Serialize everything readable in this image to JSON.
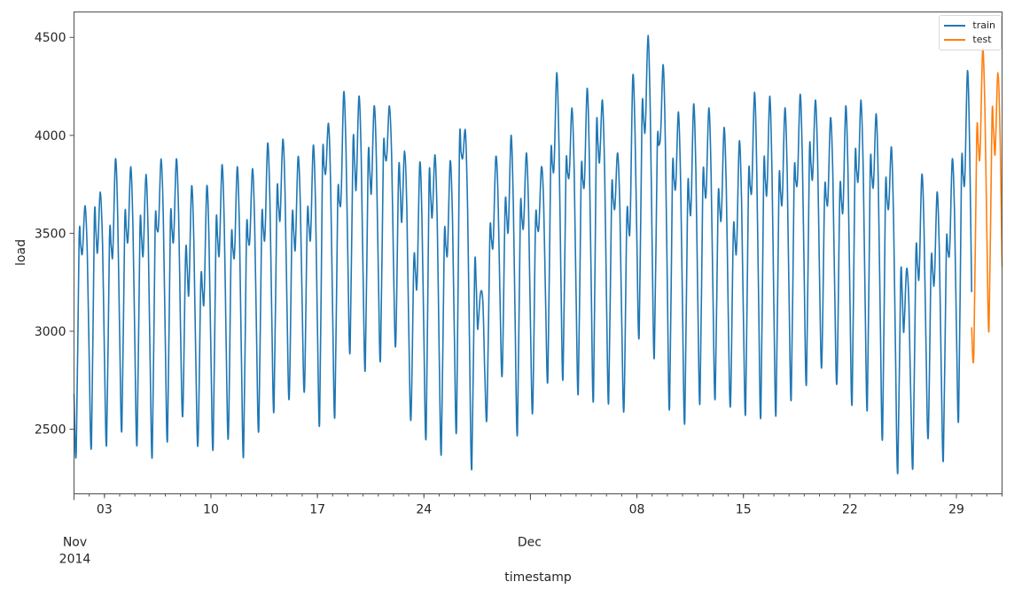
{
  "figure": {
    "xlabel": "timestamp",
    "ylabel": "load",
    "colors": {
      "train": "#1f77b4",
      "test": "#ff7f0e",
      "axes": "#4d4d4d"
    }
  },
  "legend": {
    "items": [
      {
        "label": "train",
        "color": "#1f77b4"
      },
      {
        "label": "test",
        "color": "#ff7f0e"
      }
    ]
  },
  "axes": {
    "yticks": [
      {
        "value": 2500,
        "label": "2500"
      },
      {
        "value": 3000,
        "label": "3000"
      },
      {
        "value": 3500,
        "label": "3500"
      },
      {
        "value": 4000,
        "label": "4000"
      },
      {
        "value": 4500,
        "label": "4500"
      }
    ],
    "xticks_major": [
      {
        "day": 2,
        "label": "03"
      },
      {
        "day": 9,
        "label": "10"
      },
      {
        "day": 16,
        "label": "17"
      },
      {
        "day": 23,
        "label": "24"
      },
      {
        "day": 37,
        "label": "08"
      },
      {
        "day": 44,
        "label": "15"
      },
      {
        "day": 51,
        "label": "22"
      },
      {
        "day": 58,
        "label": "29"
      }
    ],
    "month_labels": [
      {
        "day": 0,
        "month": "Nov",
        "year": "2014"
      },
      {
        "day": 30,
        "month": "Dec",
        "year": ""
      }
    ]
  },
  "chart_data": {
    "type": "line",
    "title": "",
    "xlabel": "timestamp",
    "ylabel": "load",
    "xrange": [
      "2014-11-01 00:00",
      "2014-12-31 23:00"
    ],
    "ylim": [
      2170,
      4630
    ],
    "grid": false,
    "legend_position": "upper right",
    "frequency": "hourly (daily cycle summarized: trough, morning shoulder, midday dip, evening peak)",
    "series": [
      {
        "name": "train",
        "color": "#1f77b4",
        "start": "2014-11-01",
        "end": "2014-12-30 00:00",
        "daily": [
          {
            "date": "11-01",
            "trough": 2380,
            "shoulder": 3460,
            "dip": 3390,
            "peak": 3640
          },
          {
            "date": "11-02",
            "trough": 2420,
            "shoulder": 3560,
            "dip": 3400,
            "peak": 3710
          },
          {
            "date": "11-03",
            "trough": 2430,
            "shoulder": 3470,
            "dip": 3370,
            "peak": 3880
          },
          {
            "date": "11-04",
            "trough": 2500,
            "shoulder": 3550,
            "dip": 3450,
            "peak": 3840
          },
          {
            "date": "11-05",
            "trough": 2430,
            "shoulder": 3520,
            "dip": 3380,
            "peak": 3800
          },
          {
            "date": "11-06",
            "trough": 2370,
            "shoulder": 3530,
            "dip": 3510,
            "peak": 3880
          },
          {
            "date": "11-07",
            "trough": 2450,
            "shoulder": 3550,
            "dip": 3450,
            "peak": 3880
          },
          {
            "date": "11-08",
            "trough": 2570,
            "shoulder": 3390,
            "dip": 3180,
            "peak": 3740
          },
          {
            "date": "11-09",
            "trough": 2420,
            "shoulder": 3250,
            "dip": 3130,
            "peak": 3740
          },
          {
            "date": "11-10",
            "trough": 2410,
            "shoulder": 3520,
            "dip": 3380,
            "peak": 3850
          },
          {
            "date": "11-11",
            "trough": 2460,
            "shoulder": 3450,
            "dip": 3370,
            "peak": 3840
          },
          {
            "date": "11-12",
            "trough": 2370,
            "shoulder": 3490,
            "dip": 3440,
            "peak": 3830
          },
          {
            "date": "11-13",
            "trough": 2500,
            "shoulder": 3550,
            "dip": 3460,
            "peak": 3960
          },
          {
            "date": "11-14",
            "trough": 2600,
            "shoulder": 3680,
            "dip": 3560,
            "peak": 3980
          },
          {
            "date": "11-15",
            "trough": 2660,
            "shoulder": 3560,
            "dip": 3410,
            "peak": 3890
          },
          {
            "date": "11-16",
            "trough": 2700,
            "shoulder": 3580,
            "dip": 3460,
            "peak": 3950
          },
          {
            "date": "11-17",
            "trough": 2540,
            "shoulder": 3860,
            "dip": 3800,
            "peak": 4060
          },
          {
            "date": "11-18",
            "trough": 2570,
            "shoulder": 3670,
            "dip": 3640,
            "peak": 4220
          },
          {
            "date": "11-19",
            "trough": 2900,
            "shoulder": 3940,
            "dip": 3720,
            "peak": 4200
          },
          {
            "date": "11-20",
            "trough": 2810,
            "shoulder": 3870,
            "dip": 3700,
            "peak": 4150
          },
          {
            "date": "11-21",
            "trough": 2860,
            "shoulder": 3910,
            "dip": 3870,
            "peak": 4150
          },
          {
            "date": "11-22",
            "trough": 2930,
            "shoulder": 3810,
            "dip": 3560,
            "peak": 3920
          },
          {
            "date": "11-23",
            "trough": 2550,
            "shoulder": 3350,
            "dip": 3210,
            "peak": 3860
          },
          {
            "date": "11-24",
            "trough": 2470,
            "shoulder": 3750,
            "dip": 3580,
            "peak": 3900
          },
          {
            "date": "11-25",
            "trough": 2380,
            "shoulder": 3460,
            "dip": 3380,
            "peak": 3870
          },
          {
            "date": "11-26",
            "trough": 2510,
            "shoulder": 3930,
            "dip": 3880,
            "peak": 4020
          },
          {
            "date": "11-27",
            "trough": 2300,
            "shoulder": 3320,
            "dip": 3020,
            "peak": 3200
          },
          {
            "date": "11-28",
            "trough": 2570,
            "shoulder": 3490,
            "dip": 3420,
            "peak": 3890
          },
          {
            "date": "11-29",
            "trough": 2780,
            "shoulder": 3630,
            "dip": 3500,
            "peak": 4000
          },
          {
            "date": "11-30",
            "trough": 2480,
            "shoulder": 3600,
            "dip": 3520,
            "peak": 3910
          },
          {
            "date": "12-01",
            "trough": 2590,
            "shoulder": 3550,
            "dip": 3510,
            "peak": 3840
          },
          {
            "date": "12-02",
            "trough": 2760,
            "shoulder": 3870,
            "dip": 3810,
            "peak": 4320
          },
          {
            "date": "12-03",
            "trough": 2760,
            "shoulder": 3820,
            "dip": 3780,
            "peak": 4140
          },
          {
            "date": "12-04",
            "trough": 2690,
            "shoulder": 3790,
            "dip": 3730,
            "peak": 4240
          },
          {
            "date": "12-05",
            "trough": 2660,
            "shoulder": 4000,
            "dip": 3860,
            "peak": 4180
          },
          {
            "date": "12-06",
            "trough": 2640,
            "shoulder": 3700,
            "dip": 3620,
            "peak": 3910
          },
          {
            "date": "12-07",
            "trough": 2600,
            "shoulder": 3570,
            "dip": 3490,
            "peak": 4300
          },
          {
            "date": "12-08",
            "trough": 2980,
            "shoulder": 4110,
            "dip": 4010,
            "peak": 4510
          },
          {
            "date": "12-09",
            "trough": 2870,
            "shoulder": 3940,
            "dip": 3970,
            "peak": 4360
          },
          {
            "date": "12-10",
            "trough": 2610,
            "shoulder": 3800,
            "dip": 3720,
            "peak": 4120
          },
          {
            "date": "12-11",
            "trough": 2540,
            "shoulder": 3700,
            "dip": 3590,
            "peak": 4160
          },
          {
            "date": "12-12",
            "trough": 2640,
            "shoulder": 3760,
            "dip": 3680,
            "peak": 4140
          },
          {
            "date": "12-13",
            "trough": 2660,
            "shoulder": 3660,
            "dip": 3560,
            "peak": 4040
          },
          {
            "date": "12-14",
            "trough": 2620,
            "shoulder": 3500,
            "dip": 3390,
            "peak": 3970
          },
          {
            "date": "12-15",
            "trough": 2590,
            "shoulder": 3760,
            "dip": 3700,
            "peak": 4220
          },
          {
            "date": "12-16",
            "trough": 2570,
            "shoulder": 3810,
            "dip": 3690,
            "peak": 4200
          },
          {
            "date": "12-17",
            "trough": 2580,
            "shoulder": 3740,
            "dip": 3640,
            "peak": 4140
          },
          {
            "date": "12-18",
            "trough": 2660,
            "shoulder": 3780,
            "dip": 3740,
            "peak": 4210
          },
          {
            "date": "12-19",
            "trough": 2740,
            "shoulder": 3890,
            "dip": 3770,
            "peak": 4180
          },
          {
            "date": "12-20",
            "trough": 2820,
            "shoulder": 3700,
            "dip": 3640,
            "peak": 4090
          },
          {
            "date": "12-21",
            "trough": 2740,
            "shoulder": 3700,
            "dip": 3600,
            "peak": 4150
          },
          {
            "date": "12-22",
            "trough": 2640,
            "shoulder": 3850,
            "dip": 3760,
            "peak": 4180
          },
          {
            "date": "12-23",
            "trough": 2610,
            "shoulder": 3820,
            "dip": 3730,
            "peak": 4110
          },
          {
            "date": "12-24",
            "trough": 2460,
            "shoulder": 3700,
            "dip": 3620,
            "peak": 3940
          },
          {
            "date": "12-25",
            "trough": 2280,
            "shoulder": 3270,
            "dip": 3000,
            "peak": 3320
          },
          {
            "date": "12-26",
            "trough": 2320,
            "shoulder": 3380,
            "dip": 3260,
            "peak": 3800
          },
          {
            "date": "12-27",
            "trough": 2460,
            "shoulder": 3340,
            "dip": 3230,
            "peak": 3710
          },
          {
            "date": "12-28",
            "trough": 2350,
            "shoulder": 3420,
            "dip": 3380,
            "peak": 3880
          },
          {
            "date": "12-29",
            "trough": 2560,
            "shoulder": 3820,
            "dip": 3740,
            "peak": 4330
          }
        ],
        "end_value": 3200
      },
      {
        "name": "test",
        "color": "#ff7f0e",
        "start": "2014-12-30 00:00",
        "end": "2014-12-31 23:00",
        "daily": [
          {
            "date": "12-30",
            "trough": 2890,
            "shoulder": 3990,
            "dip": 3870,
            "peak": 4440
          },
          {
            "date": "12-31",
            "trough": 3010,
            "shoulder": 4080,
            "dip": 3900,
            "peak": 4320
          }
        ],
        "start_value": 3020,
        "end_value": 3330
      }
    ]
  }
}
